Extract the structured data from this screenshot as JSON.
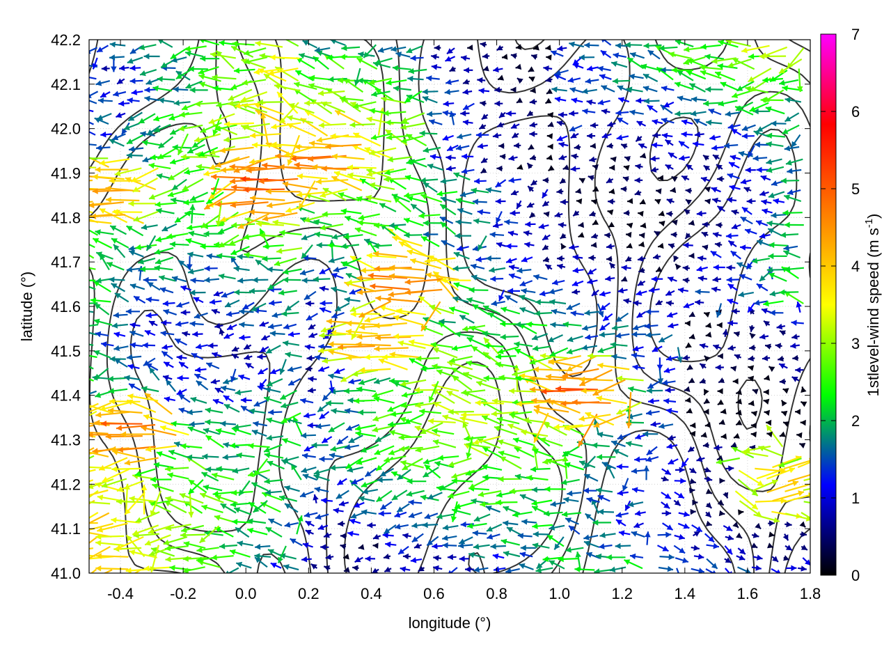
{
  "chart_data": {
    "type": "vector-field",
    "xlabel": "longitude (°)",
    "ylabel": "latitude (°)",
    "xlim": [
      -0.5,
      1.8
    ],
    "ylim": [
      41.0,
      42.2
    ],
    "xticks": [
      -0.4,
      -0.2,
      0.0,
      0.2,
      0.4,
      0.6,
      0.8,
      1.0,
      1.2,
      1.4,
      1.6,
      1.8
    ],
    "xtick_labels": [
      "-0.4",
      "-0.2",
      "0.0",
      "0.2",
      "0.4",
      "0.6",
      "0.8",
      "1.0",
      "1.2",
      "1.4",
      "1.6",
      "1.8"
    ],
    "yticks": [
      41.0,
      41.1,
      41.2,
      41.3,
      41.4,
      41.5,
      41.6,
      41.7,
      41.8,
      41.9,
      42.0,
      42.1,
      42.2
    ],
    "ytick_labels": [
      "41.0",
      "41.1",
      "41.2",
      "41.3",
      "41.4",
      "41.5",
      "41.6",
      "41.7",
      "41.8",
      "41.9",
      "42.0",
      "42.1",
      "42.2"
    ],
    "grid": true,
    "colorbar": {
      "label": "1stlevel-wind speed (m s",
      "label_superscript": "-1",
      "label_suffix": ")",
      "range": [
        0,
        7
      ],
      "ticks": [
        0,
        1,
        2,
        3,
        4,
        5,
        6,
        7
      ],
      "tick_labels": [
        "0",
        "1",
        "2",
        "3",
        "4",
        "5",
        "6",
        "7"
      ],
      "colors": [
        "#000000",
        "#0000ff",
        "#00ff00",
        "#ffff00",
        "#ff7f00",
        "#ff0000",
        "#ff00ff"
      ]
    },
    "vectors_description": "1st level wind vectors, predominantly westward flow, colored by speed",
    "contour_color": "#333333",
    "strong_wind_regions": [
      {
        "lon": -0.4,
        "lat": 41.85,
        "speed": 4.5,
        "u": -1.0
      },
      {
        "lon": 0.3,
        "lat": 41.93,
        "speed": 4.8,
        "u": -1.0
      },
      {
        "lon": 0.1,
        "lat": 41.88,
        "speed": 5.2,
        "u": -0.5
      },
      {
        "lon": -0.35,
        "lat": 41.32,
        "speed": 5.0,
        "u": -1.0
      },
      {
        "lon": 0.45,
        "lat": 41.53,
        "speed": 4.5,
        "u": -1.0
      },
      {
        "lon": 1.1,
        "lat": 41.41,
        "speed": 5.0,
        "u": -0.9
      },
      {
        "lon": 1.7,
        "lat": 41.2,
        "speed": 4.0,
        "u": 0.9
      },
      {
        "lon": 0.55,
        "lat": 41.65,
        "speed": 4.8,
        "u": -1.0
      }
    ]
  }
}
